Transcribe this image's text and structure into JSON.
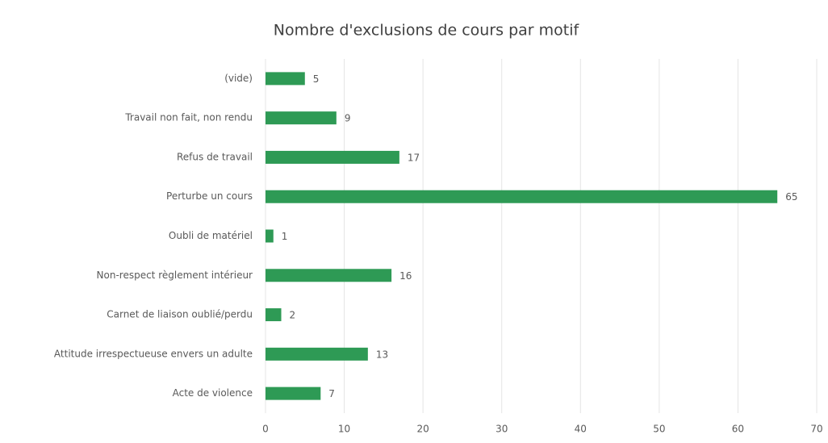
{
  "chart_data": {
    "type": "bar",
    "orientation": "horizontal",
    "title": "Nombre d'exclusions de cours par motif",
    "categories": [
      "(vide)",
      "Travail non fait, non rendu",
      "Refus de travail",
      "Perturbe un cours",
      "Oubli de matériel",
      "Non-respect règlement intérieur",
      "Carnet de liaison oublié/perdu",
      "Attitude irrespectueuse envers un adulte",
      "Acte de violence"
    ],
    "values": [
      5,
      9,
      17,
      65,
      1,
      16,
      2,
      13,
      7
    ],
    "color": "#2e9a55",
    "xlim": [
      0,
      70
    ],
    "xticks": [
      0,
      10,
      20,
      30,
      40,
      50,
      60,
      70
    ],
    "grid": true
  }
}
